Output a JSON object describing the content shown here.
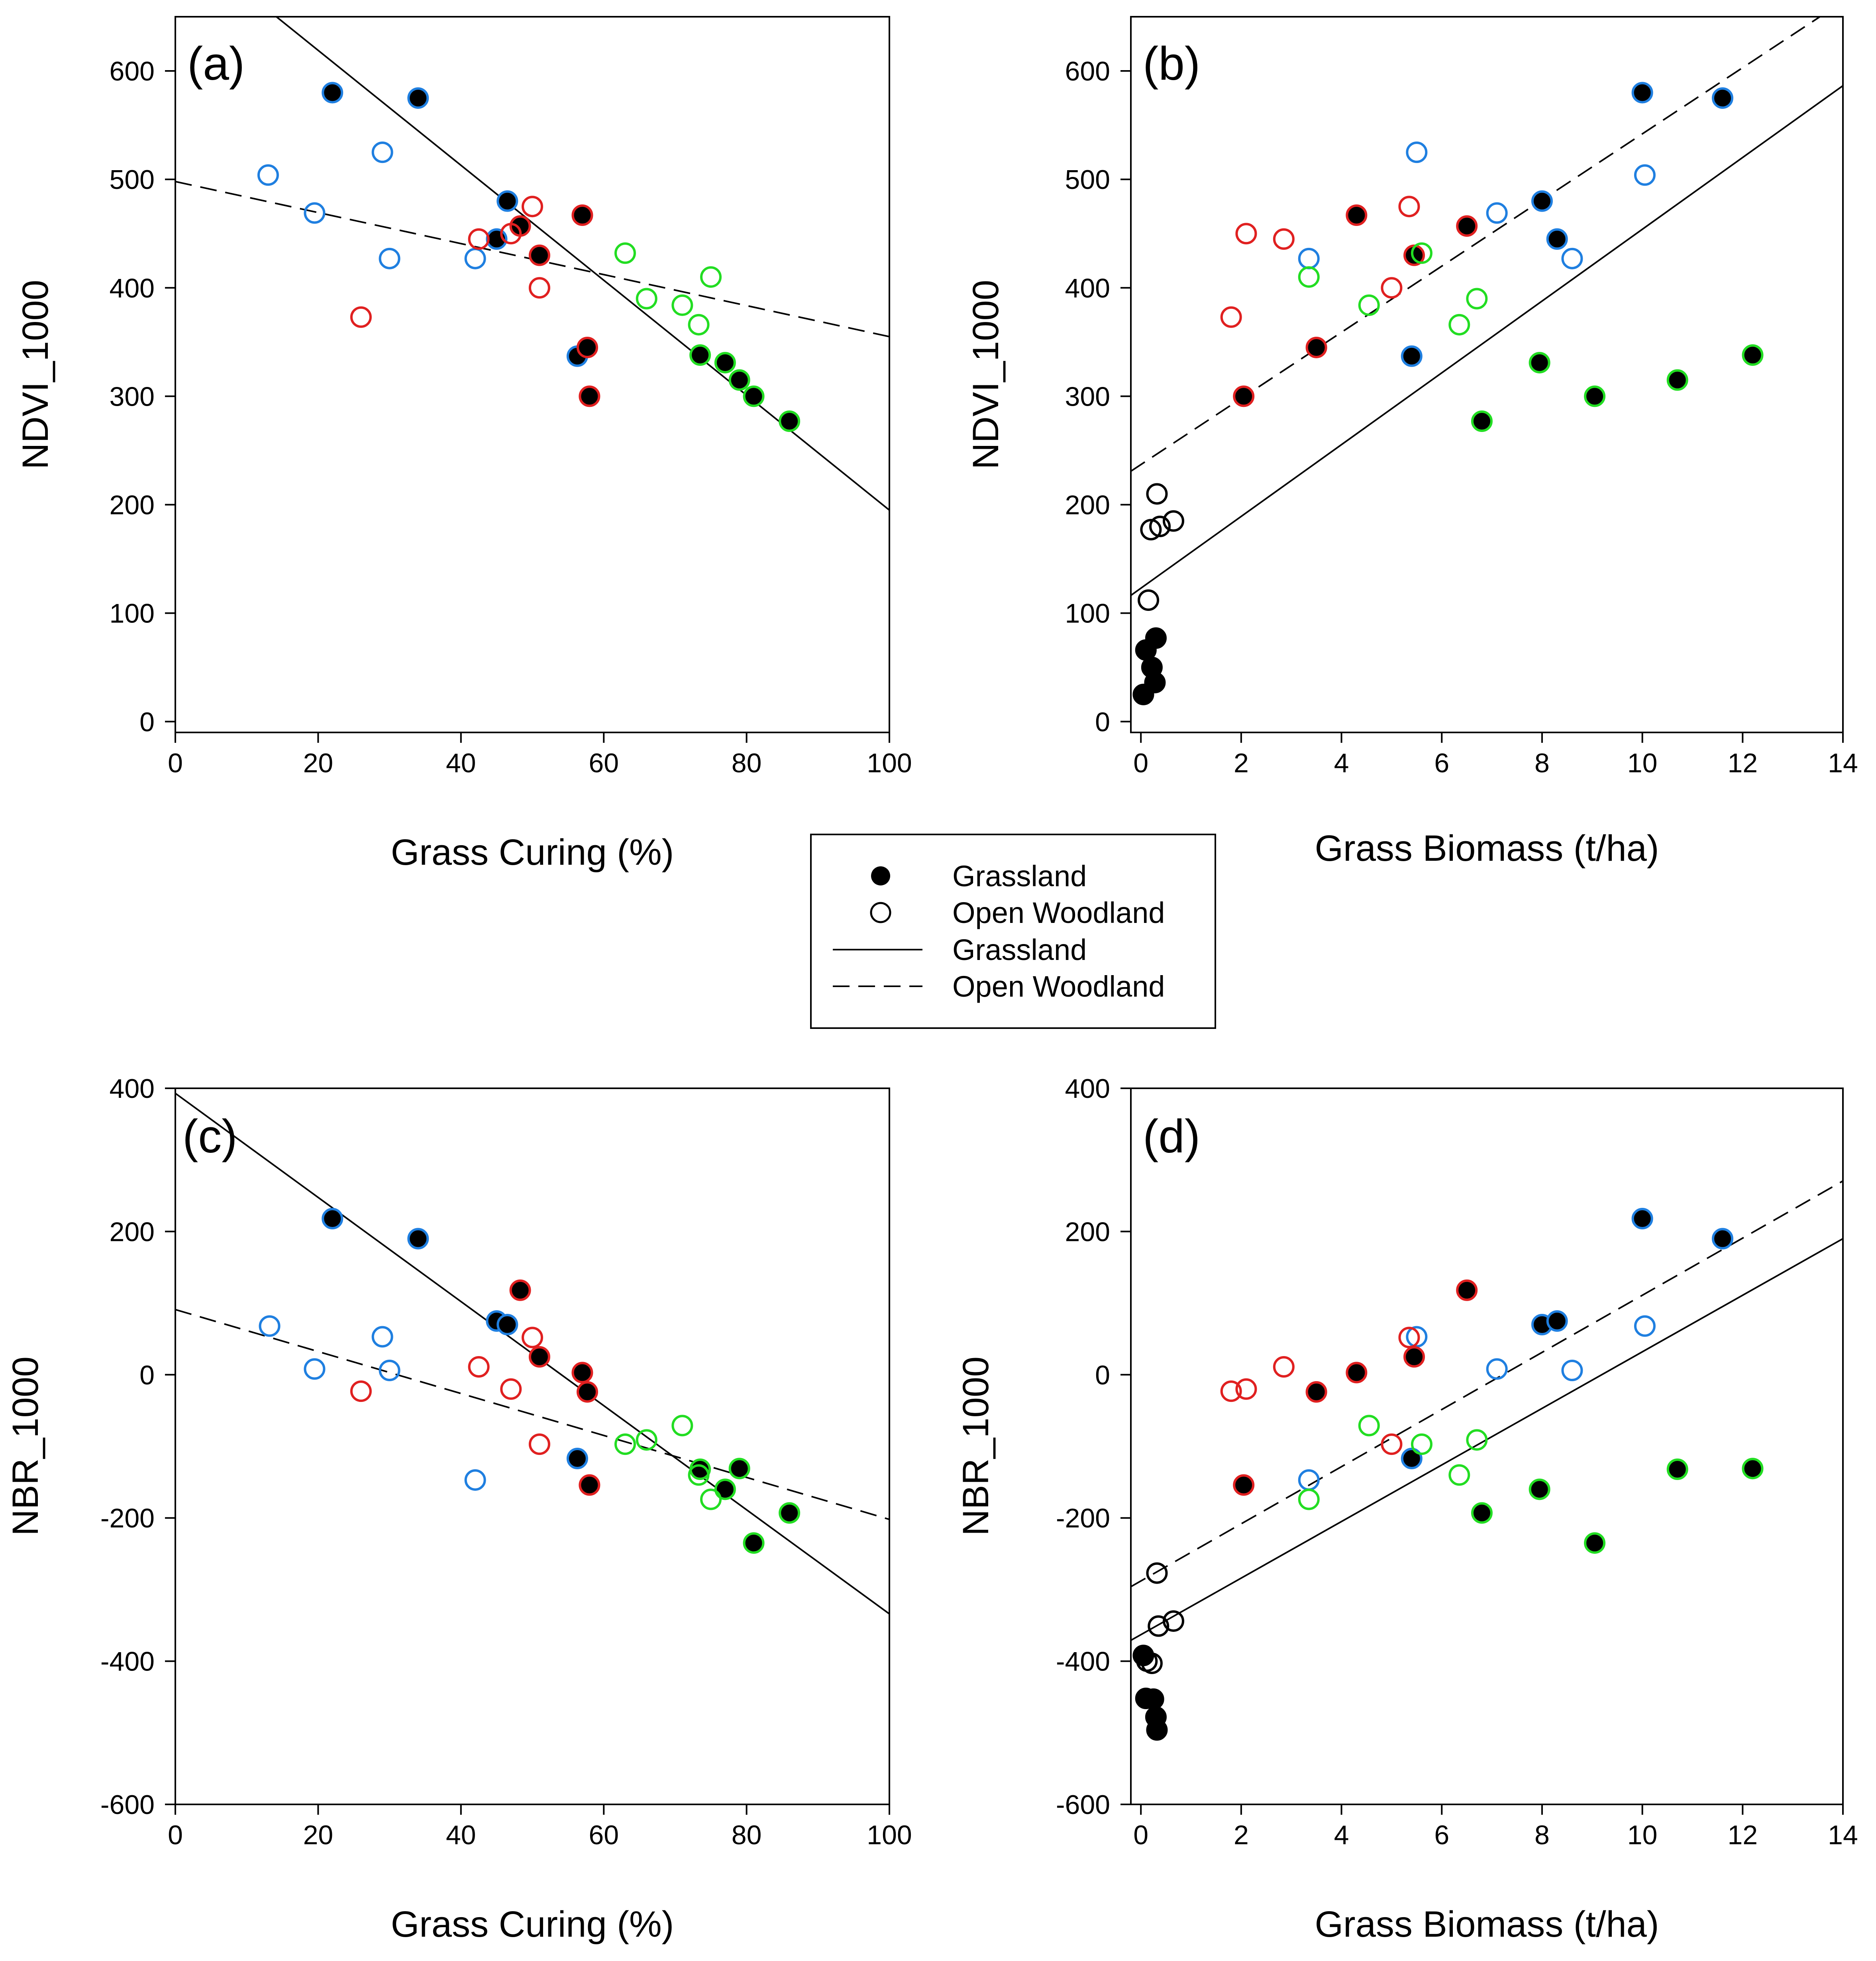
{
  "chart_data": [
    {
      "id": "a",
      "type": "scatter",
      "panel_label": "(a)",
      "xlabel": "Grass Curing (%)",
      "ylabel": "NDVI_1000",
      "xlim": [
        0,
        100
      ],
      "ylim": [
        -10,
        650
      ],
      "xticks": [
        0,
        20,
        40,
        60,
        80,
        100
      ],
      "yticks": [
        0,
        100,
        200,
        300,
        400,
        500,
        600
      ],
      "points": [
        {
          "x": 22,
          "y": 580,
          "filled": true,
          "color": "#1f7fe0"
        },
        {
          "x": 34,
          "y": 575,
          "filled": true,
          "color": "#1f7fe0"
        },
        {
          "x": 45,
          "y": 445,
          "filled": true,
          "color": "#1f7fe0"
        },
        {
          "x": 46.5,
          "y": 480,
          "filled": true,
          "color": "#1f7fe0"
        },
        {
          "x": 56.3,
          "y": 337,
          "filled": true,
          "color": "#1f7fe0"
        },
        {
          "x": 13,
          "y": 504,
          "filled": false,
          "color": "#1f7fe0"
        },
        {
          "x": 19.5,
          "y": 469,
          "filled": false,
          "color": "#1f7fe0"
        },
        {
          "x": 29,
          "y": 525,
          "filled": false,
          "color": "#1f7fe0"
        },
        {
          "x": 30,
          "y": 427,
          "filled": false,
          "color": "#1f7fe0"
        },
        {
          "x": 42,
          "y": 427,
          "filled": false,
          "color": "#1f7fe0"
        },
        {
          "x": 48.3,
          "y": 457,
          "filled": true,
          "color": "#e02020"
        },
        {
          "x": 51,
          "y": 430,
          "filled": true,
          "color": "#e02020"
        },
        {
          "x": 57,
          "y": 467,
          "filled": true,
          "color": "#e02020"
        },
        {
          "x": 57.7,
          "y": 345,
          "filled": true,
          "color": "#e02020"
        },
        {
          "x": 58,
          "y": 300,
          "filled": true,
          "color": "#e02020"
        },
        {
          "x": 26,
          "y": 373,
          "filled": false,
          "color": "#e02020"
        },
        {
          "x": 42.5,
          "y": 445,
          "filled": false,
          "color": "#e02020"
        },
        {
          "x": 47,
          "y": 450,
          "filled": false,
          "color": "#e02020"
        },
        {
          "x": 50,
          "y": 475,
          "filled": false,
          "color": "#e02020"
        },
        {
          "x": 51,
          "y": 400,
          "filled": false,
          "color": "#e02020"
        },
        {
          "x": 73.5,
          "y": 338,
          "filled": true,
          "color": "#22dd22"
        },
        {
          "x": 77,
          "y": 331,
          "filled": true,
          "color": "#22dd22"
        },
        {
          "x": 79,
          "y": 315,
          "filled": true,
          "color": "#22dd22"
        },
        {
          "x": 81,
          "y": 300,
          "filled": true,
          "color": "#22dd22"
        },
        {
          "x": 86,
          "y": 277,
          "filled": true,
          "color": "#22dd22"
        },
        {
          "x": 63,
          "y": 432,
          "filled": false,
          "color": "#22dd22"
        },
        {
          "x": 66,
          "y": 390,
          "filled": false,
          "color": "#22dd22"
        },
        {
          "x": 71,
          "y": 384,
          "filled": false,
          "color": "#22dd22"
        },
        {
          "x": 73.3,
          "y": 366,
          "filled": false,
          "color": "#22dd22"
        },
        {
          "x": 75,
          "y": 410,
          "filled": false,
          "color": "#22dd22"
        }
      ],
      "lines": [
        {
          "name": "Grassland",
          "style": "solid",
          "intercept": 725,
          "slope": -5.3
        },
        {
          "name": "Open Woodland",
          "style": "dashed",
          "intercept": 498,
          "slope": -1.43
        }
      ]
    },
    {
      "id": "b",
      "type": "scatter",
      "panel_label": "(b)",
      "xlabel": "Grass Biomass (t/ha)",
      "ylabel": "NDVI_1000",
      "xlim": [
        -0.2,
        14
      ],
      "ylim": [
        -10,
        650
      ],
      "xticks": [
        0,
        2,
        4,
        6,
        8,
        10,
        12,
        14
      ],
      "yticks": [
        0,
        100,
        200,
        300,
        400,
        500,
        600
      ],
      "points": [
        {
          "x": 10,
          "y": 580,
          "filled": true,
          "color": "#1f7fe0"
        },
        {
          "x": 11.6,
          "y": 575,
          "filled": true,
          "color": "#1f7fe0"
        },
        {
          "x": 8,
          "y": 480,
          "filled": true,
          "color": "#1f7fe0"
        },
        {
          "x": 8.3,
          "y": 445,
          "filled": true,
          "color": "#1f7fe0"
        },
        {
          "x": 5.4,
          "y": 337,
          "filled": true,
          "color": "#1f7fe0"
        },
        {
          "x": 10.05,
          "y": 504,
          "filled": false,
          "color": "#1f7fe0"
        },
        {
          "x": 7.1,
          "y": 469,
          "filled": false,
          "color": "#1f7fe0"
        },
        {
          "x": 5.5,
          "y": 525,
          "filled": false,
          "color": "#1f7fe0"
        },
        {
          "x": 3.35,
          "y": 427,
          "filled": false,
          "color": "#1f7fe0"
        },
        {
          "x": 8.6,
          "y": 427,
          "filled": false,
          "color": "#1f7fe0"
        },
        {
          "x": 6.5,
          "y": 457,
          "filled": true,
          "color": "#e02020"
        },
        {
          "x": 5.45,
          "y": 430,
          "filled": true,
          "color": "#e02020"
        },
        {
          "x": 4.3,
          "y": 467,
          "filled": true,
          "color": "#e02020"
        },
        {
          "x": 3.5,
          "y": 345,
          "filled": true,
          "color": "#e02020"
        },
        {
          "x": 2.05,
          "y": 300,
          "filled": true,
          "color": "#e02020"
        },
        {
          "x": 1.8,
          "y": 373,
          "filled": false,
          "color": "#e02020"
        },
        {
          "x": 2.1,
          "y": 450,
          "filled": false,
          "color": "#e02020"
        },
        {
          "x": 2.85,
          "y": 445,
          "filled": false,
          "color": "#e02020"
        },
        {
          "x": 5.35,
          "y": 475,
          "filled": false,
          "color": "#e02020"
        },
        {
          "x": 5,
          "y": 400,
          "filled": false,
          "color": "#e02020"
        },
        {
          "x": 12.2,
          "y": 338,
          "filled": true,
          "color": "#22dd22"
        },
        {
          "x": 7.95,
          "y": 331,
          "filled": true,
          "color": "#22dd22"
        },
        {
          "x": 10.7,
          "y": 315,
          "filled": true,
          "color": "#22dd22"
        },
        {
          "x": 9.05,
          "y": 300,
          "filled": true,
          "color": "#22dd22"
        },
        {
          "x": 6.8,
          "y": 277,
          "filled": true,
          "color": "#22dd22"
        },
        {
          "x": 5.6,
          "y": 432,
          "filled": false,
          "color": "#22dd22"
        },
        {
          "x": 6.7,
          "y": 390,
          "filled": false,
          "color": "#22dd22"
        },
        {
          "x": 4.55,
          "y": 384,
          "filled": false,
          "color": "#22dd22"
        },
        {
          "x": 6.35,
          "y": 366,
          "filled": false,
          "color": "#22dd22"
        },
        {
          "x": 3.35,
          "y": 410,
          "filled": false,
          "color": "#22dd22"
        },
        {
          "x": 0.05,
          "y": 25,
          "filled": true,
          "color": "#000000"
        },
        {
          "x": 0.1,
          "y": 66,
          "filled": true,
          "color": "#000000"
        },
        {
          "x": 0.22,
          "y": 50,
          "filled": true,
          "color": "#000000"
        },
        {
          "x": 0.3,
          "y": 77,
          "filled": true,
          "color": "#000000"
        },
        {
          "x": 0.28,
          "y": 36,
          "filled": true,
          "color": "#000000"
        },
        {
          "x": 0.15,
          "y": 112,
          "filled": false,
          "color": "#000000"
        },
        {
          "x": 0.2,
          "y": 177,
          "filled": false,
          "color": "#000000"
        },
        {
          "x": 0.32,
          "y": 210,
          "filled": false,
          "color": "#000000"
        },
        {
          "x": 0.38,
          "y": 180,
          "filled": false,
          "color": "#000000"
        },
        {
          "x": 0.65,
          "y": 185,
          "filled": false,
          "color": "#000000"
        }
      ],
      "lines": [
        {
          "name": "Grassland",
          "style": "solid",
          "intercept": 123,
          "slope": 33.1
        },
        {
          "name": "Open Woodland",
          "style": "dashed",
          "intercept": 237,
          "slope": 30.5
        }
      ]
    },
    {
      "id": "c",
      "type": "scatter",
      "panel_label": "(c)",
      "xlabel": "Grass Curing (%)",
      "ylabel": "NBR_1000",
      "xlim": [
        0,
        100
      ],
      "ylim": [
        -600,
        400
      ],
      "xticks": [
        0,
        20,
        40,
        60,
        80,
        100
      ],
      "yticks": [
        -600,
        -400,
        -200,
        0,
        200,
        400
      ],
      "points": [
        {
          "x": 22,
          "y": 218,
          "filled": true,
          "color": "#1f7fe0"
        },
        {
          "x": 34,
          "y": 190,
          "filled": true,
          "color": "#1f7fe0"
        },
        {
          "x": 45,
          "y": 75,
          "filled": true,
          "color": "#1f7fe0"
        },
        {
          "x": 46.5,
          "y": 70,
          "filled": true,
          "color": "#1f7fe0"
        },
        {
          "x": 56.3,
          "y": -117,
          "filled": true,
          "color": "#1f7fe0"
        },
        {
          "x": 13.2,
          "y": 68,
          "filled": false,
          "color": "#1f7fe0"
        },
        {
          "x": 19.5,
          "y": 8,
          "filled": false,
          "color": "#1f7fe0"
        },
        {
          "x": 29,
          "y": 53,
          "filled": false,
          "color": "#1f7fe0"
        },
        {
          "x": 30,
          "y": 6,
          "filled": false,
          "color": "#1f7fe0"
        },
        {
          "x": 42,
          "y": -147,
          "filled": false,
          "color": "#1f7fe0"
        },
        {
          "x": 48.3,
          "y": 118,
          "filled": true,
          "color": "#e02020"
        },
        {
          "x": 51,
          "y": 25,
          "filled": true,
          "color": "#e02020"
        },
        {
          "x": 57,
          "y": 3,
          "filled": true,
          "color": "#e02020"
        },
        {
          "x": 57.7,
          "y": -24,
          "filled": true,
          "color": "#e02020"
        },
        {
          "x": 58,
          "y": -154,
          "filled": true,
          "color": "#e02020"
        },
        {
          "x": 26,
          "y": -23,
          "filled": false,
          "color": "#e02020"
        },
        {
          "x": 42.5,
          "y": 11,
          "filled": false,
          "color": "#e02020"
        },
        {
          "x": 47,
          "y": -20,
          "filled": false,
          "color": "#e02020"
        },
        {
          "x": 50,
          "y": 52,
          "filled": false,
          "color": "#e02020"
        },
        {
          "x": 51,
          "y": -97,
          "filled": false,
          "color": "#e02020"
        },
        {
          "x": 73.5,
          "y": -132,
          "filled": true,
          "color": "#22dd22"
        },
        {
          "x": 77,
          "y": -160,
          "filled": true,
          "color": "#22dd22"
        },
        {
          "x": 79,
          "y": -131,
          "filled": true,
          "color": "#22dd22"
        },
        {
          "x": 81,
          "y": -235,
          "filled": true,
          "color": "#22dd22"
        },
        {
          "x": 86,
          "y": -193,
          "filled": true,
          "color": "#22dd22"
        },
        {
          "x": 63,
          "y": -97,
          "filled": false,
          "color": "#22dd22"
        },
        {
          "x": 66,
          "y": -91,
          "filled": false,
          "color": "#22dd22"
        },
        {
          "x": 71,
          "y": -71,
          "filled": false,
          "color": "#22dd22"
        },
        {
          "x": 73.3,
          "y": -140,
          "filled": false,
          "color": "#22dd22"
        },
        {
          "x": 75,
          "y": -174,
          "filled": false,
          "color": "#22dd22"
        }
      ],
      "lines": [
        {
          "name": "Grassland",
          "style": "solid",
          "intercept": 393,
          "slope": -7.27
        },
        {
          "name": "Open Woodland",
          "style": "dashed",
          "intercept": 91,
          "slope": -2.93
        }
      ]
    },
    {
      "id": "d",
      "type": "scatter",
      "panel_label": "(d)",
      "xlabel": "Grass Biomass (t/ha)",
      "ylabel": "NBR_1000",
      "xlim": [
        -0.2,
        14
      ],
      "ylim": [
        -600,
        400
      ],
      "xticks": [
        0,
        2,
        4,
        6,
        8,
        10,
        12,
        14
      ],
      "yticks": [
        -600,
        -400,
        -200,
        0,
        200,
        400
      ],
      "points": [
        {
          "x": 10,
          "y": 218,
          "filled": true,
          "color": "#1f7fe0"
        },
        {
          "x": 11.6,
          "y": 190,
          "filled": true,
          "color": "#1f7fe0"
        },
        {
          "x": 8,
          "y": 70,
          "filled": true,
          "color": "#1f7fe0"
        },
        {
          "x": 8.3,
          "y": 75,
          "filled": true,
          "color": "#1f7fe0"
        },
        {
          "x": 5.4,
          "y": -117,
          "filled": true,
          "color": "#1f7fe0"
        },
        {
          "x": 10.05,
          "y": 68,
          "filled": false,
          "color": "#1f7fe0"
        },
        {
          "x": 7.1,
          "y": 8,
          "filled": false,
          "color": "#1f7fe0"
        },
        {
          "x": 5.5,
          "y": 53,
          "filled": false,
          "color": "#1f7fe0"
        },
        {
          "x": 3.35,
          "y": -147,
          "filled": false,
          "color": "#1f7fe0"
        },
        {
          "x": 8.6,
          "y": 6,
          "filled": false,
          "color": "#1f7fe0"
        },
        {
          "x": 6.5,
          "y": 118,
          "filled": true,
          "color": "#e02020"
        },
        {
          "x": 5.45,
          "y": 25,
          "filled": true,
          "color": "#e02020"
        },
        {
          "x": 4.3,
          "y": 3,
          "filled": true,
          "color": "#e02020"
        },
        {
          "x": 3.5,
          "y": -24,
          "filled": true,
          "color": "#e02020"
        },
        {
          "x": 2.05,
          "y": -154,
          "filled": true,
          "color": "#e02020"
        },
        {
          "x": 1.8,
          "y": -23,
          "filled": false,
          "color": "#e02020"
        },
        {
          "x": 2.1,
          "y": -20,
          "filled": false,
          "color": "#e02020"
        },
        {
          "x": 2.85,
          "y": 11,
          "filled": false,
          "color": "#e02020"
        },
        {
          "x": 5.35,
          "y": 52,
          "filled": false,
          "color": "#e02020"
        },
        {
          "x": 5,
          "y": -97,
          "filled": false,
          "color": "#e02020"
        },
        {
          "x": 12.2,
          "y": -131,
          "filled": true,
          "color": "#22dd22"
        },
        {
          "x": 7.95,
          "y": -160,
          "filled": true,
          "color": "#22dd22"
        },
        {
          "x": 10.7,
          "y": -132,
          "filled": true,
          "color": "#22dd22"
        },
        {
          "x": 9.05,
          "y": -235,
          "filled": true,
          "color": "#22dd22"
        },
        {
          "x": 6.8,
          "y": -193,
          "filled": true,
          "color": "#22dd22"
        },
        {
          "x": 5.6,
          "y": -97,
          "filled": false,
          "color": "#22dd22"
        },
        {
          "x": 6.7,
          "y": -91,
          "filled": false,
          "color": "#22dd22"
        },
        {
          "x": 4.55,
          "y": -71,
          "filled": false,
          "color": "#22dd22"
        },
        {
          "x": 6.35,
          "y": -140,
          "filled": false,
          "color": "#22dd22"
        },
        {
          "x": 3.35,
          "y": -174,
          "filled": false,
          "color": "#22dd22"
        },
        {
          "x": 0.05,
          "y": -392,
          "filled": true,
          "color": "#000000"
        },
        {
          "x": 0.1,
          "y": -452,
          "filled": true,
          "color": "#000000"
        },
        {
          "x": 0.25,
          "y": -453,
          "filled": true,
          "color": "#000000"
        },
        {
          "x": 0.3,
          "y": -478,
          "filled": true,
          "color": "#000000"
        },
        {
          "x": 0.32,
          "y": -496,
          "filled": true,
          "color": "#000000"
        },
        {
          "x": 0.12,
          "y": -400,
          "filled": false,
          "color": "#000000"
        },
        {
          "x": 0.22,
          "y": -403,
          "filled": false,
          "color": "#000000"
        },
        {
          "x": 0.32,
          "y": -277,
          "filled": false,
          "color": "#000000"
        },
        {
          "x": 0.35,
          "y": -351,
          "filled": false,
          "color": "#000000"
        },
        {
          "x": 0.65,
          "y": -344,
          "filled": false,
          "color": "#000000"
        }
      ],
      "lines": [
        {
          "name": "Grassland",
          "style": "solid",
          "intercept": -363,
          "slope": 39.5
        },
        {
          "name": "Open Woodland",
          "style": "dashed",
          "intercept": -288,
          "slope": 39.9
        }
      ]
    }
  ],
  "legend": {
    "items": [
      {
        "label": "Grassland",
        "symbol": "filled-circle"
      },
      {
        "label": "Open Woodland",
        "symbol": "open-circle"
      },
      {
        "label": "Grassland",
        "symbol": "solid-line"
      },
      {
        "label": "Open Woodland",
        "symbol": "dashed-line"
      }
    ]
  }
}
